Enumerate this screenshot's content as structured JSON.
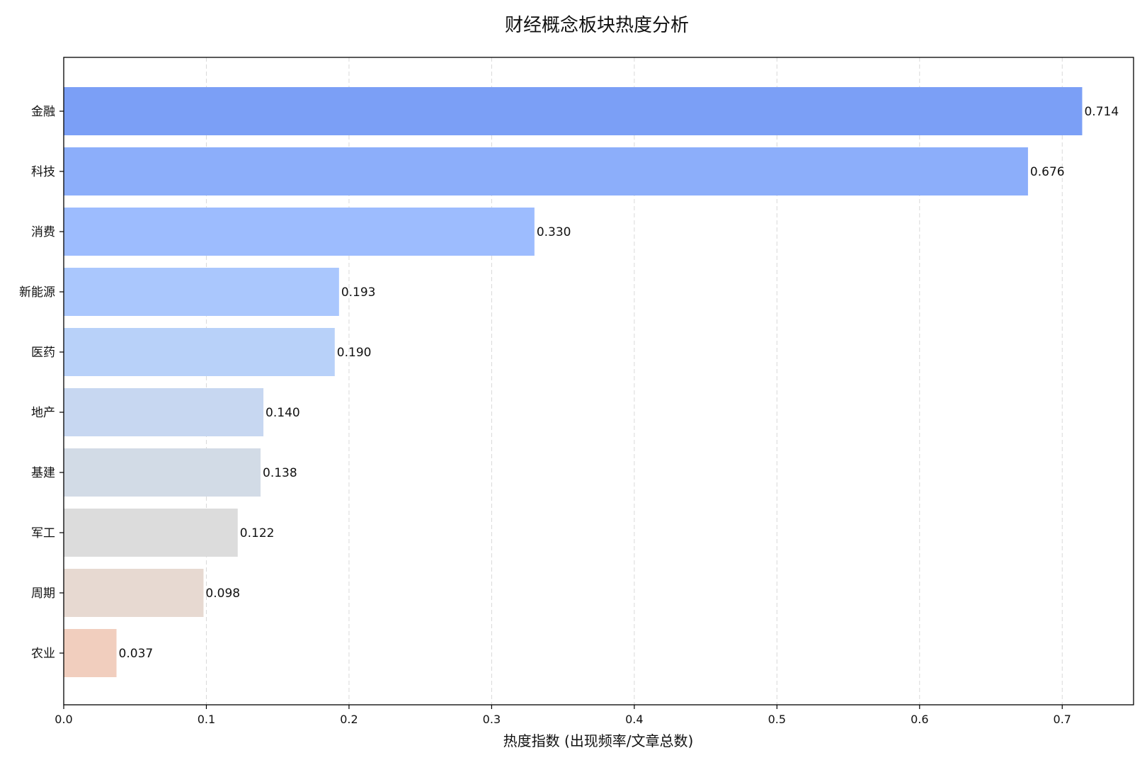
{
  "chart_data": {
    "type": "bar",
    "orientation": "horizontal",
    "title": "财经概念板块热度分析",
    "xlabel": "热度指数 (出现频率/文章总数)",
    "ylabel": "",
    "xlim": [
      0,
      0.75
    ],
    "xticks": [
      0.0,
      0.1,
      0.2,
      0.3,
      0.4,
      0.5,
      0.6,
      0.7
    ],
    "xtick_labels": [
      "0.0",
      "0.1",
      "0.2",
      "0.3",
      "0.4",
      "0.5",
      "0.6",
      "0.7"
    ],
    "grid": "vertical dashed",
    "categories": [
      "金融",
      "科技",
      "消费",
      "新能源",
      "医药",
      "地产",
      "基建",
      "军工",
      "周期",
      "农业"
    ],
    "values": [
      0.714,
      0.676,
      0.33,
      0.193,
      0.19,
      0.14,
      0.138,
      0.122,
      0.098,
      0.037
    ],
    "value_labels": [
      "0.714",
      "0.676",
      "0.330",
      "0.193",
      "0.190",
      "0.140",
      "0.138",
      "0.122",
      "0.098",
      "0.037"
    ],
    "colors": [
      "#7b9ff6",
      "#8caefa",
      "#9dbcfe",
      "#aac7fd",
      "#b8d1f9",
      "#c7d7f1",
      "#d2dbe6",
      "#dcdcdc",
      "#e7d9d1",
      "#f1cebe"
    ]
  }
}
